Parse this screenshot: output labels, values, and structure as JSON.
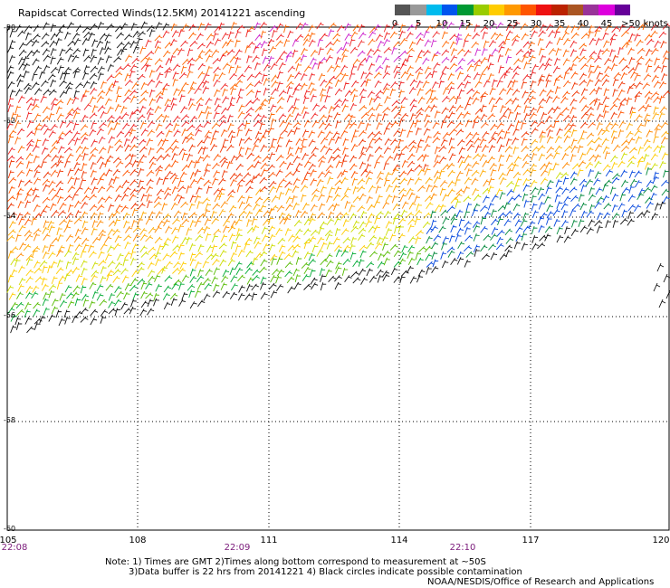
{
  "header": {
    "title": "Rapidscat Corrected Winds(12.5KM) 20141221 ascending"
  },
  "legend": {
    "colors": [
      "#555555",
      "#999999",
      "#00bbee",
      "#0055ee",
      "#009933",
      "#99cc00",
      "#ffcc00",
      "#ff9900",
      "#ff5500",
      "#ee1111",
      "#bb2200",
      "#aa5522",
      "#993399",
      "#dd00dd",
      "#660099"
    ],
    "labels": [
      "0",
      "5",
      "10",
      "15",
      "20",
      "25",
      "30",
      "35",
      "40",
      "45",
      ">50 knots"
    ]
  },
  "map": {
    "lon_labels": [
      "105",
      "108",
      "111",
      "114",
      "117",
      "120"
    ],
    "lat_labels": [
      "-50",
      "-52",
      "-54",
      "-56",
      "-58",
      "-60"
    ],
    "time_labels": [
      "22:08",
      "22:09",
      "22:10"
    ]
  },
  "notes": {
    "line1": "Note: 1) Times are GMT 2)Times along bottom correspond to measurement at ~50S",
    "line2": "3)Data buffer is 22 hrs from 20141221 4) Black circles indicate possible contamination"
  },
  "credit": "NOAA/NESDIS/Office of Research and Applications"
}
